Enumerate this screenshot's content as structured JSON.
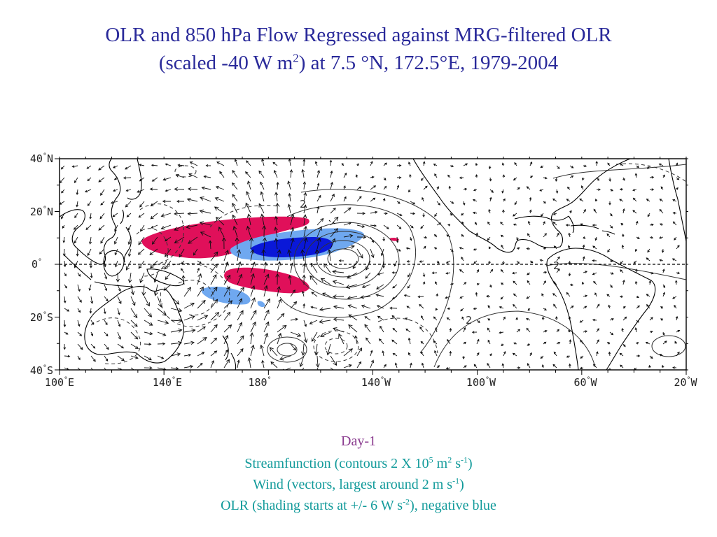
{
  "title": {
    "line1": "OLR and 850 hPa Flow Regressed against MRG-filtered OLR",
    "line2_a": "(scaled -40 W m",
    "line2_sup": "2",
    "line2_b": ") at 7.5 °N, 172.5°E, 1979-2004"
  },
  "map": {
    "lat_labels": [
      {
        "deg": "40",
        "hem": "N"
      },
      {
        "deg": "20",
        "hem": "N"
      },
      {
        "deg": "0",
        "hem": ""
      },
      {
        "deg": "20",
        "hem": "S"
      },
      {
        "deg": "40",
        "hem": "S"
      }
    ],
    "lon_labels": [
      {
        "deg": "100",
        "hem": "E"
      },
      {
        "deg": "140",
        "hem": "E"
      },
      {
        "deg": "180",
        "hem": ""
      },
      {
        "deg": "140",
        "hem": "W"
      },
      {
        "deg": "100",
        "hem": "W"
      },
      {
        "deg": "60",
        "hem": "W"
      },
      {
        "deg": "20",
        "hem": "W"
      }
    ],
    "contour_labels": [
      "2",
      "2",
      "2"
    ],
    "colors": {
      "positive_olr": "#e0105a",
      "negative_olr_strong": "#0a18d8",
      "negative_olr_weak": "#6fa8f0",
      "contour": "#333333",
      "coast": "#000000"
    }
  },
  "caption": {
    "day": "Day-1",
    "streamfunction_a": "Streamfunction (contours 2 X 10",
    "streamfunction_sup1": "5",
    "streamfunction_b": " m",
    "streamfunction_sup2": "2",
    "streamfunction_c": " s",
    "streamfunction_sup3": "-1",
    "streamfunction_d": ")",
    "wind_a": "Wind (vectors, largest around 2 m s",
    "wind_sup": "-1",
    "wind_b": ")",
    "olr_a": "OLR (shading starts at +/- 6 W s",
    "olr_sup": "-2",
    "olr_b": "), negative blue"
  }
}
